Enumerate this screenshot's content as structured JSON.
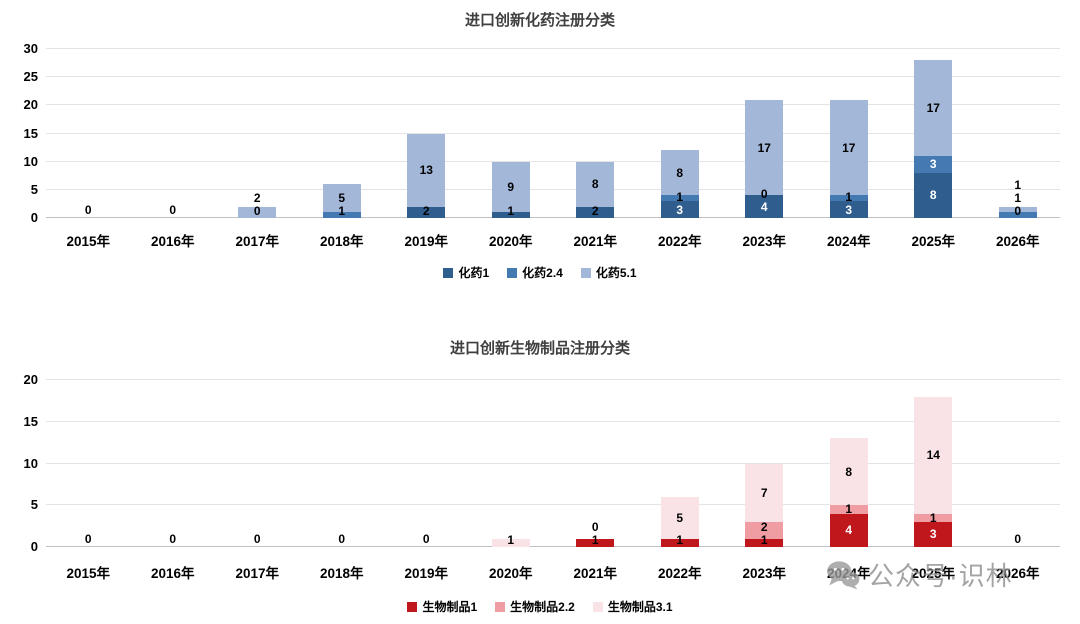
{
  "watermark": {
    "text": "公众号·识林",
    "icon": "wechat-icon"
  },
  "chart_data": [
    {
      "type": "bar",
      "stacked": true,
      "title": "进口创新化药注册分类",
      "legend_position": "bottom",
      "grid": true,
      "ylim": [
        0,
        30
      ],
      "ytick_step": 5,
      "categories": [
        "2015年",
        "2016年",
        "2017年",
        "2018年",
        "2019年",
        "2020年",
        "2021年",
        "2022年",
        "2023年",
        "2024年",
        "2025年",
        "2026年"
      ],
      "series": [
        {
          "name": "化药1",
          "color": "#2E5D8E",
          "dark": true,
          "values": [
            0,
            0,
            0,
            0,
            2,
            1,
            2,
            3,
            4,
            3,
            8,
            0
          ]
        },
        {
          "name": "化药2.4",
          "color": "#4579B2",
          "dark": true,
          "values": [
            0,
            0,
            0,
            1,
            0,
            0,
            0,
            1,
            0,
            1,
            3,
            1
          ]
        },
        {
          "name": "化药5.1",
          "color": "#A3B7D9",
          "dark": false,
          "values": [
            0,
            0,
            2,
            5,
            13,
            9,
            8,
            8,
            17,
            17,
            17,
            1
          ]
        }
      ],
      "zero_labels": [
        {
          "col": 2,
          "series": 0
        },
        {
          "col": 8,
          "series": 1
        },
        {
          "col": 11,
          "series": 0
        }
      ]
    },
    {
      "type": "bar",
      "stacked": true,
      "title": "进口创新生物制品注册分类",
      "legend_position": "bottom",
      "grid": true,
      "ylim": [
        0,
        20
      ],
      "ytick_step": 5,
      "categories": [
        "2015年",
        "2016年",
        "2017年",
        "2018年",
        "2019年",
        "2020年",
        "2021年",
        "2022年",
        "2023年",
        "2024年",
        "2025年",
        "2026年"
      ],
      "series": [
        {
          "name": "生物制品1",
          "color": "#C0171C",
          "dark": true,
          "values": [
            0,
            0,
            0,
            0,
            0,
            0,
            1,
            1,
            1,
            4,
            3,
            0
          ]
        },
        {
          "name": "生物制品2.2",
          "color": "#F09CA3",
          "dark": false,
          "values": [
            0,
            0,
            0,
            0,
            0,
            0,
            0,
            0,
            2,
            1,
            1,
            0
          ]
        },
        {
          "name": "生物制品3.1",
          "color": "#FAE3E7",
          "dark": false,
          "values": [
            0,
            0,
            0,
            0,
            0,
            1,
            0,
            5,
            7,
            8,
            14,
            0
          ]
        }
      ],
      "zero_labels": [
        {
          "col": 6,
          "series": 1
        }
      ]
    }
  ]
}
